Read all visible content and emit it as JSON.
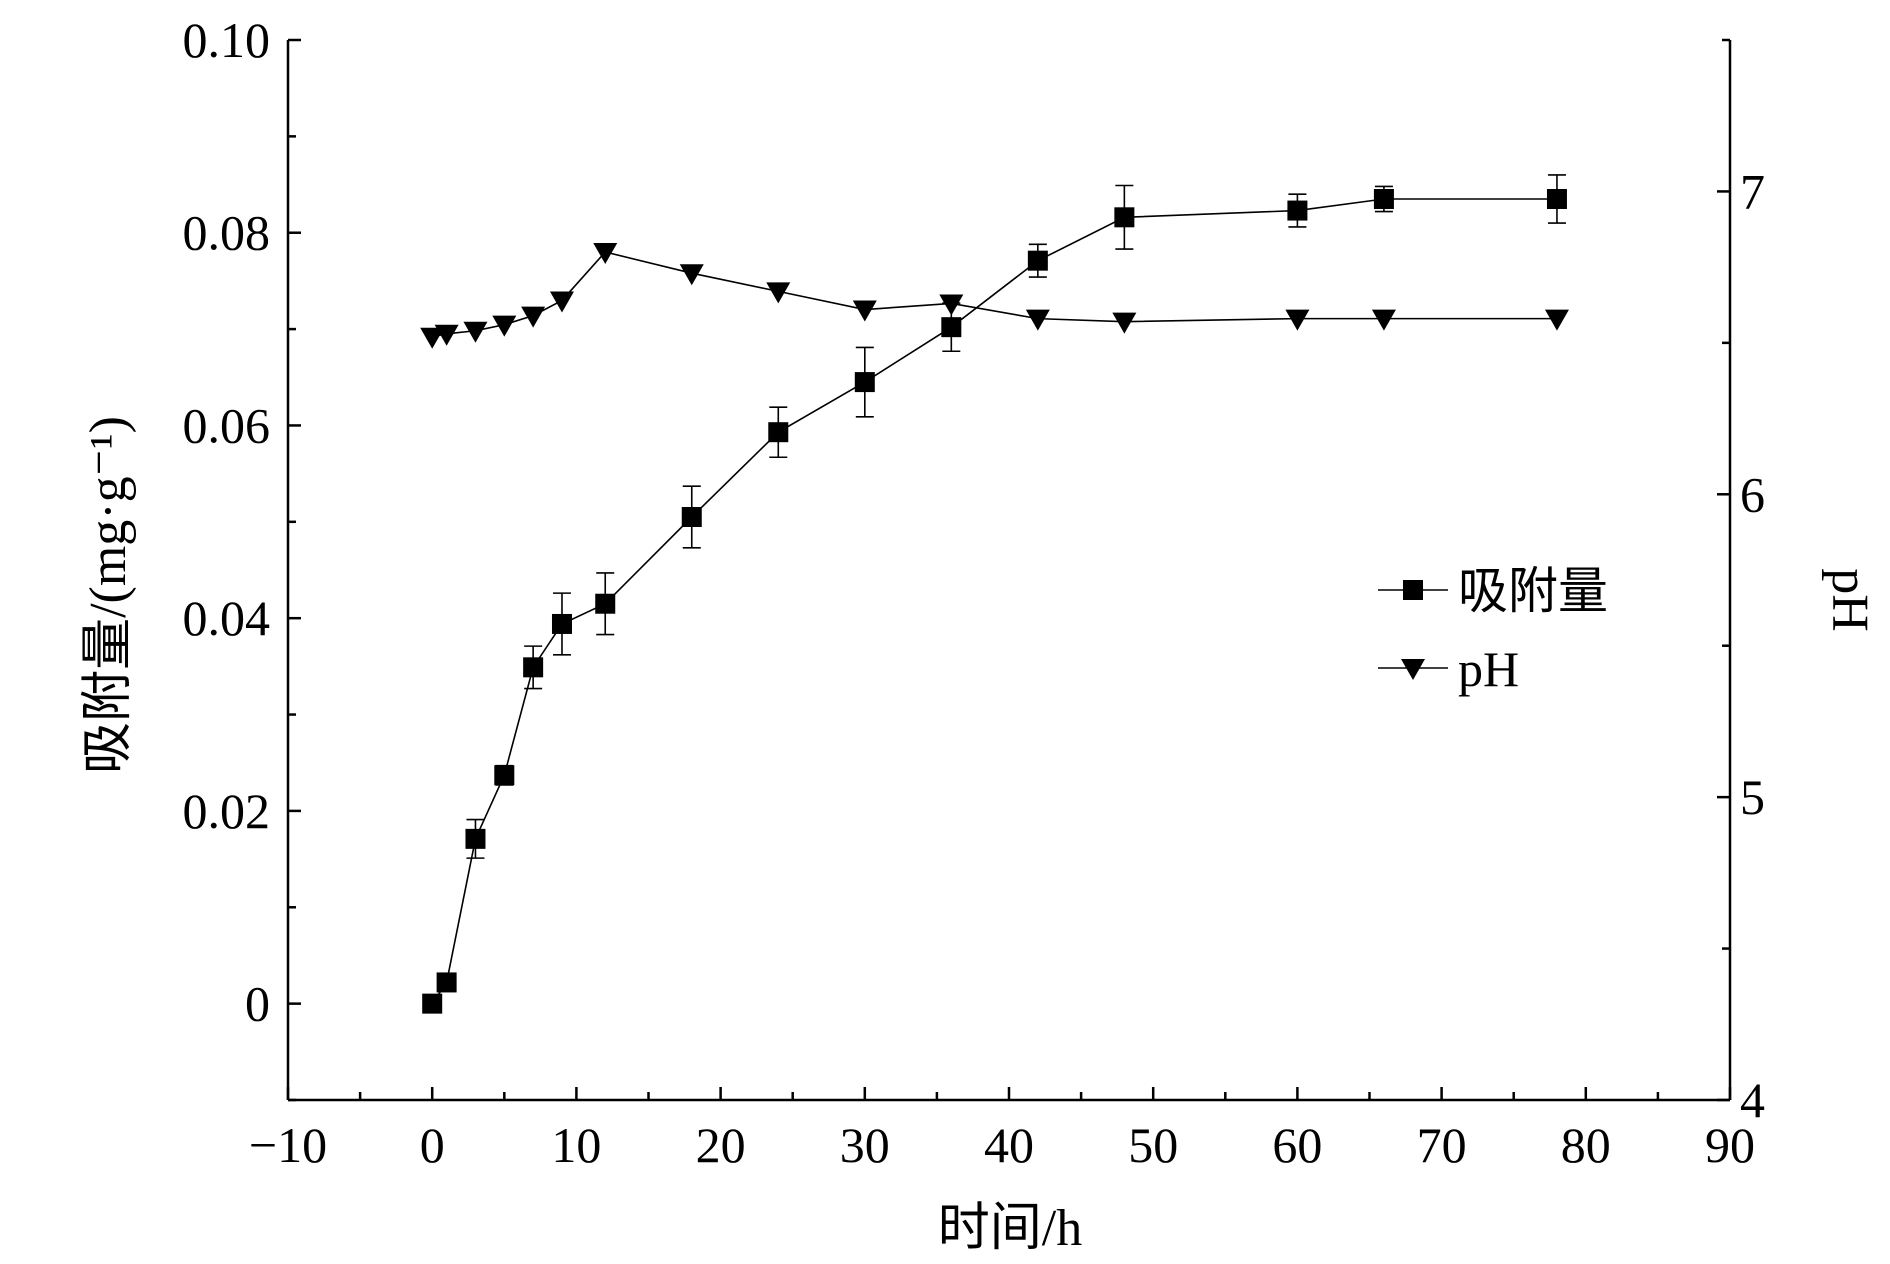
{
  "chart_data": {
    "type": "line",
    "xlabel": "时间/h",
    "ylabel_left": "吸附量/(mg·g⁻¹)",
    "ylabel_right": "pH",
    "xlim": [
      -10,
      90
    ],
    "ylim_left": [
      -0.01,
      0.1
    ],
    "ylim_right": [
      4,
      7.5
    ],
    "x_ticks": [
      -10,
      0,
      10,
      20,
      30,
      40,
      50,
      60,
      70,
      80,
      90
    ],
    "x_tick_labels": [
      "−10",
      "0",
      "10",
      "20",
      "30",
      "40",
      "50",
      "60",
      "70",
      "80",
      "90"
    ],
    "y_left_ticks": [
      0,
      0.02,
      0.04,
      0.06,
      0.08,
      0.1
    ],
    "y_left_tick_labels": [
      "0",
      "0.02",
      "0.04",
      "0.06",
      "0.08",
      "0.10"
    ],
    "y_right_ticks": [
      4,
      5,
      6,
      7
    ],
    "y_right_tick_labels": [
      "4",
      "5",
      "6",
      "7"
    ],
    "legend_position": "right-middle",
    "series": [
      {
        "name": "吸附量",
        "axis": "left",
        "marker": "square",
        "x": [
          0,
          1,
          3,
          5,
          7,
          9,
          12,
          18,
          24,
          30,
          36,
          42,
          48,
          60,
          66,
          78
        ],
        "y": [
          0,
          0.0022,
          0.0171,
          0.0237,
          0.0349,
          0.0394,
          0.0415,
          0.0505,
          0.0593,
          0.0645,
          0.0702,
          0.0771,
          0.0816,
          0.0823,
          0.0835,
          0.0835
        ],
        "error": [
          0,
          0,
          0.002,
          0.001,
          0.0022,
          0.0032,
          0.0032,
          0.0032,
          0.0026,
          0.0036,
          0.0025,
          0.0017,
          0.0033,
          0.0017,
          0.0013,
          0.0025
        ]
      },
      {
        "name": "pH",
        "axis": "right",
        "marker": "triangle-down",
        "x": [
          0,
          1,
          3,
          5,
          7,
          9,
          12,
          18,
          24,
          30,
          36,
          42,
          48,
          60,
          66,
          78
        ],
        "y": [
          6.52,
          6.53,
          6.54,
          6.56,
          6.59,
          6.64,
          6.8,
          6.73,
          6.67,
          6.61,
          6.63,
          6.58,
          6.57,
          6.58,
          6.58,
          6.58
        ]
      }
    ]
  }
}
